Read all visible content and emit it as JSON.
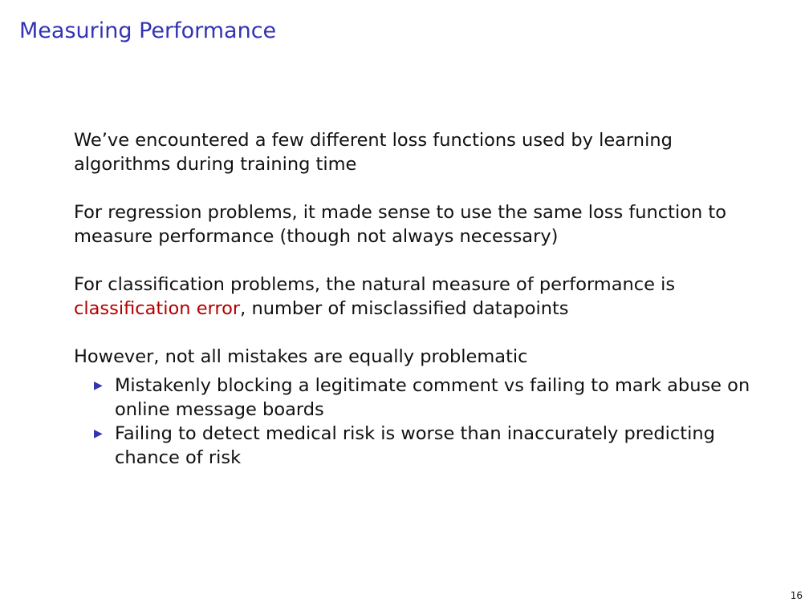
{
  "slide": {
    "title": "Measuring Performance",
    "page_number": "16"
  },
  "content": {
    "para1": "We’ve encountered a few different loss functions used by learning algorithms during training time",
    "para2": "For regression problems, it made sense to use the same loss function to measure performance (though not always necessary)",
    "para3": {
      "prefix": "For classification problems, the natural measure of performance is ",
      "highlight": "classification error",
      "suffix": ", number of misclassified datapoints"
    },
    "para4": "However, not all mistakes are equally problematic",
    "bullet_marker": "▶",
    "bullets": [
      "Mistakenly blocking a legitimate comment vs failing to mark abuse on online message boards",
      "Failing to detect medical risk is worse than inaccurately predicting chance of risk"
    ]
  },
  "colors": {
    "title": "#3333b3",
    "highlight": "#b30000",
    "text": "#111111"
  }
}
